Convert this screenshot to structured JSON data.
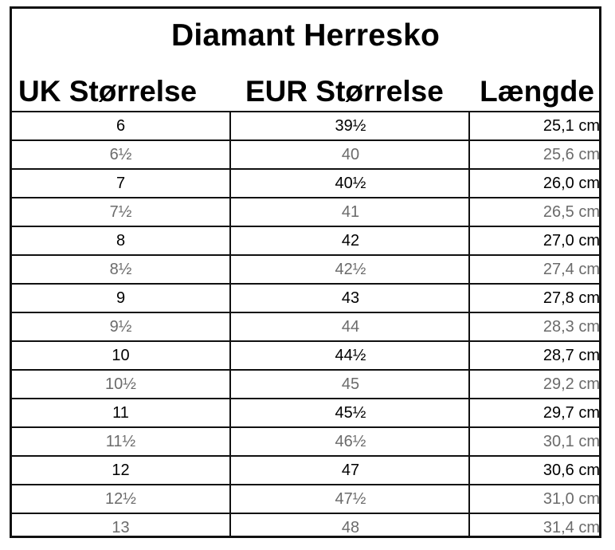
{
  "title": "Diamant Herresko",
  "headers": {
    "uk": "UK Størrelse",
    "eur": "EUR Størrelse",
    "length": "Længde"
  },
  "colors": {
    "primary_text": "#000000",
    "secondary_text": "#6b6b6b",
    "border": "#111111",
    "background": "#ffffff"
  },
  "rows": [
    {
      "uk": "6",
      "eur": "39½",
      "length": "25,1 cm",
      "half": false
    },
    {
      "uk": "6½",
      "eur": "40",
      "length": "25,6 cm",
      "half": true
    },
    {
      "uk": "7",
      "eur": "40½",
      "length": "26,0 cm",
      "half": false
    },
    {
      "uk": "7½",
      "eur": "41",
      "length": "26,5 cm",
      "half": true
    },
    {
      "uk": "8",
      "eur": "42",
      "length": "27,0 cm",
      "half": false
    },
    {
      "uk": "8½",
      "eur": "42½",
      "length": "27,4 cm",
      "half": true
    },
    {
      "uk": "9",
      "eur": "43",
      "length": "27,8 cm",
      "half": false
    },
    {
      "uk": "9½",
      "eur": "44",
      "length": "28,3 cm",
      "half": true
    },
    {
      "uk": "10",
      "eur": "44½",
      "length": "28,7 cm",
      "half": false
    },
    {
      "uk": "10½",
      "eur": "45",
      "length": "29,2 cm",
      "half": true
    },
    {
      "uk": "11",
      "eur": "45½",
      "length": "29,7 cm",
      "half": false
    },
    {
      "uk": "11½",
      "eur": "46½",
      "length": "30,1 cm",
      "half": true
    },
    {
      "uk": "12",
      "eur": "47",
      "length": "30,6 cm",
      "half": false
    },
    {
      "uk": "12½",
      "eur": "47½",
      "length": "31,0 cm",
      "half": true
    },
    {
      "uk": "13",
      "eur": "48",
      "length": "31,4 cm",
      "half": true
    }
  ]
}
